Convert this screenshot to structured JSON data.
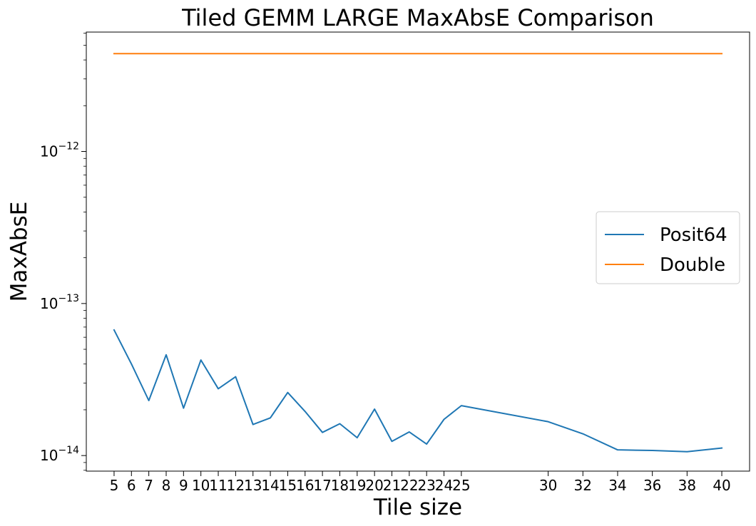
{
  "chart_data": {
    "type": "line",
    "title": "Tiled GEMM LARGE MaxAbsE Comparison",
    "xlabel": "Tile size",
    "ylabel": "MaxAbsE",
    "yscale": "log",
    "xlim": [
      3.4,
      41.6
    ],
    "ylim": [
      7.9e-15,
      6.1e-12
    ],
    "x": [
      5,
      6,
      7,
      8,
      9,
      10,
      11,
      12,
      13,
      14,
      15,
      16,
      17,
      18,
      19,
      20,
      21,
      22,
      23,
      24,
      25,
      30,
      32,
      34,
      36,
      38,
      40
    ],
    "x_tick_labels": [
      "5",
      "6",
      "7",
      "8",
      "9",
      "10",
      "11",
      "12",
      "13",
      "14",
      "15",
      "16",
      "17",
      "18",
      "19",
      "20",
      "21",
      "22",
      "23",
      "24",
      "25",
      "30",
      "32",
      "34",
      "36",
      "38",
      "40"
    ],
    "y_ticks": [
      {
        "value": 1e-14,
        "base": "10",
        "exp": "−14"
      },
      {
        "value": 1e-13,
        "base": "10",
        "exp": "−13"
      },
      {
        "value": 1e-12,
        "base": "10",
        "exp": "−12"
      }
    ],
    "series": [
      {
        "name": "Posit64",
        "color": "#1f77b4",
        "values": [
          6.7e-14,
          4e-14,
          2.3e-14,
          4.6e-14,
          2.05e-14,
          4.25e-14,
          2.75e-14,
          3.3e-14,
          1.6e-14,
          1.77e-14,
          2.6e-14,
          1.95e-14,
          1.42e-14,
          1.62e-14,
          1.31e-14,
          2.02e-14,
          1.24e-14,
          1.43e-14,
          1.19e-14,
          1.73e-14,
          2.13e-14,
          1.67e-14,
          1.39e-14,
          1.09e-14,
          1.08e-14,
          1.06e-14,
          1.12e-14
        ]
      },
      {
        "name": "Double",
        "color": "#ff7f0e",
        "values": [
          4.4e-12,
          4.4e-12,
          4.4e-12,
          4.4e-12,
          4.4e-12,
          4.4e-12,
          4.4e-12,
          4.4e-12,
          4.4e-12,
          4.4e-12,
          4.4e-12,
          4.4e-12,
          4.4e-12,
          4.4e-12,
          4.4e-12,
          4.4e-12,
          4.4e-12,
          4.4e-12,
          4.4e-12,
          4.4e-12,
          4.4e-12,
          4.4e-12,
          4.4e-12,
          4.4e-12,
          4.4e-12,
          4.4e-12,
          4.4e-12
        ]
      }
    ],
    "legend_position": "center-right",
    "grid": false
  }
}
